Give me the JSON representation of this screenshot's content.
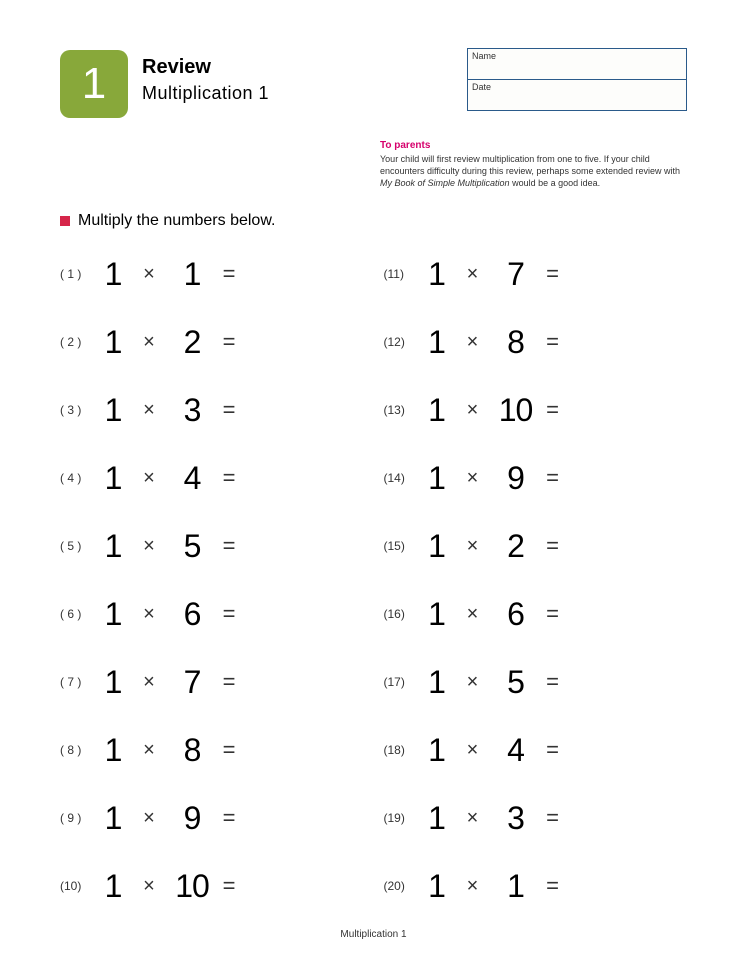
{
  "badge": {
    "number": "1",
    "bg": "#88a83a"
  },
  "title": {
    "main": "Review",
    "sub": "Multiplication 1"
  },
  "nameDate": {
    "nameLabel": "Name",
    "dateLabel": "Date"
  },
  "parents": {
    "heading": "To parents",
    "line1": "Your child will first review multiplication from one to five. If your child encounters difficulty during this review, perhaps some extended review with ",
    "italic": "My Book of Simple Multiplication",
    "line2": " would be a good idea."
  },
  "instruction": "Multiply the numbers below.",
  "footer": "Multiplication 1",
  "symbols": {
    "times": "×",
    "equals": "="
  },
  "leftProblems": [
    {
      "n": "( 1 )",
      "a": "1",
      "b": "1"
    },
    {
      "n": "( 2 )",
      "a": "1",
      "b": "2"
    },
    {
      "n": "( 3 )",
      "a": "1",
      "b": "3"
    },
    {
      "n": "( 4 )",
      "a": "1",
      "b": "4"
    },
    {
      "n": "( 5 )",
      "a": "1",
      "b": "5"
    },
    {
      "n": "( 6 )",
      "a": "1",
      "b": "6"
    },
    {
      "n": "( 7 )",
      "a": "1",
      "b": "7"
    },
    {
      "n": "( 8 )",
      "a": "1",
      "b": "8"
    },
    {
      "n": "( 9 )",
      "a": "1",
      "b": "9"
    },
    {
      "n": "(10)",
      "a": "1",
      "b": "10"
    }
  ],
  "rightProblems": [
    {
      "n": "(11)",
      "a": "1",
      "b": "7"
    },
    {
      "n": "(12)",
      "a": "1",
      "b": "8"
    },
    {
      "n": "(13)",
      "a": "1",
      "b": "10"
    },
    {
      "n": "(14)",
      "a": "1",
      "b": "9"
    },
    {
      "n": "(15)",
      "a": "1",
      "b": "2"
    },
    {
      "n": "(16)",
      "a": "1",
      "b": "6"
    },
    {
      "n": "(17)",
      "a": "1",
      "b": "5"
    },
    {
      "n": "(18)",
      "a": "1",
      "b": "4"
    },
    {
      "n": "(19)",
      "a": "1",
      "b": "3"
    },
    {
      "n": "(20)",
      "a": "1",
      "b": "1"
    }
  ]
}
